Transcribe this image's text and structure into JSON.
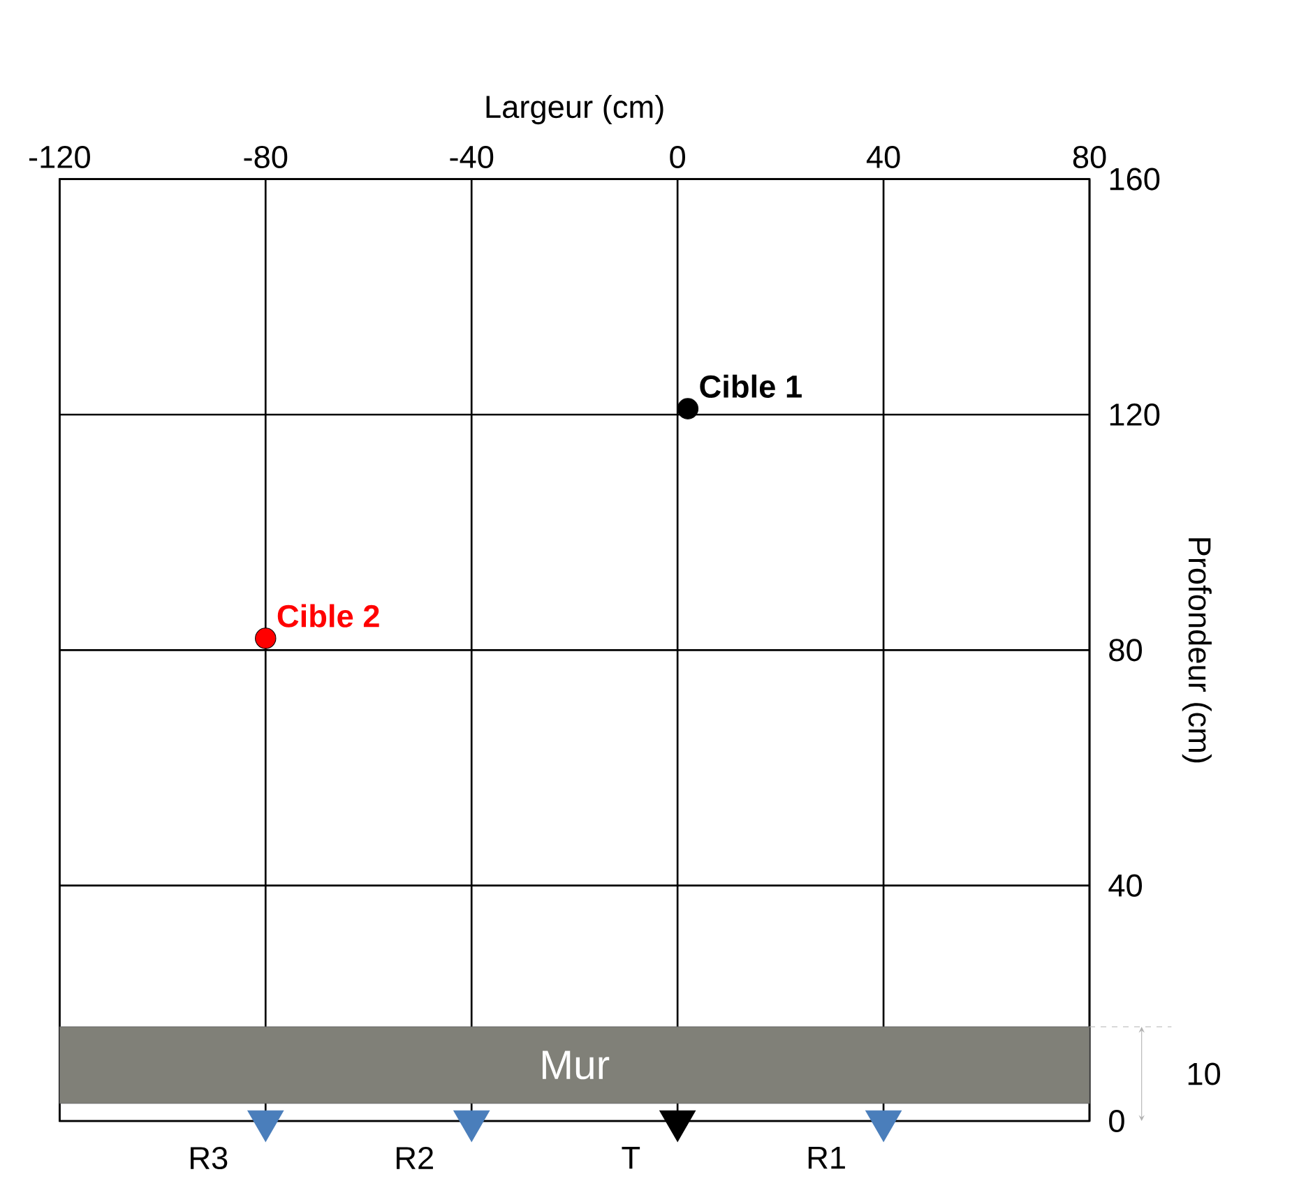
{
  "chart_data": {
    "type": "scatter",
    "xlabel": "Largeur (cm)",
    "ylabel": "Profondeur (cm)",
    "xlim": [
      -120,
      80
    ],
    "xticks": [
      -120,
      -80,
      -40,
      0,
      40,
      80
    ],
    "ylim": [
      0,
      160
    ],
    "yticks": [
      0,
      40,
      80,
      120,
      160
    ],
    "grid": true,
    "series": [
      {
        "name": "Cible 1",
        "color": "#000000",
        "marker": "circle",
        "x": [
          2
        ],
        "values": [
          121
        ]
      },
      {
        "name": "Cible 2",
        "color": "#ff0000",
        "marker": "circle",
        "x": [
          -80
        ],
        "values": [
          82
        ]
      },
      {
        "color": "#4a7ebb",
        "marker": "triangle",
        "x": [
          -80,
          -40,
          40
        ],
        "values": [
          0,
          0,
          0
        ]
      },
      {
        "color": "#000000",
        "marker": "triangle",
        "x": [
          0
        ],
        "values": [
          0
        ]
      }
    ],
    "bands": [
      {
        "axis": "y",
        "from": 3,
        "to": 16,
        "label": "Mur",
        "color": "#808078"
      }
    ],
    "annotations": [
      {
        "text": "R3",
        "x": -80,
        "y": 0
      },
      {
        "text": "R2",
        "x": -40,
        "y": 0
      },
      {
        "text": "T",
        "x": 0,
        "y": 0
      },
      {
        "text": "R1",
        "x": 40,
        "y": 0
      },
      "10"
    ]
  }
}
